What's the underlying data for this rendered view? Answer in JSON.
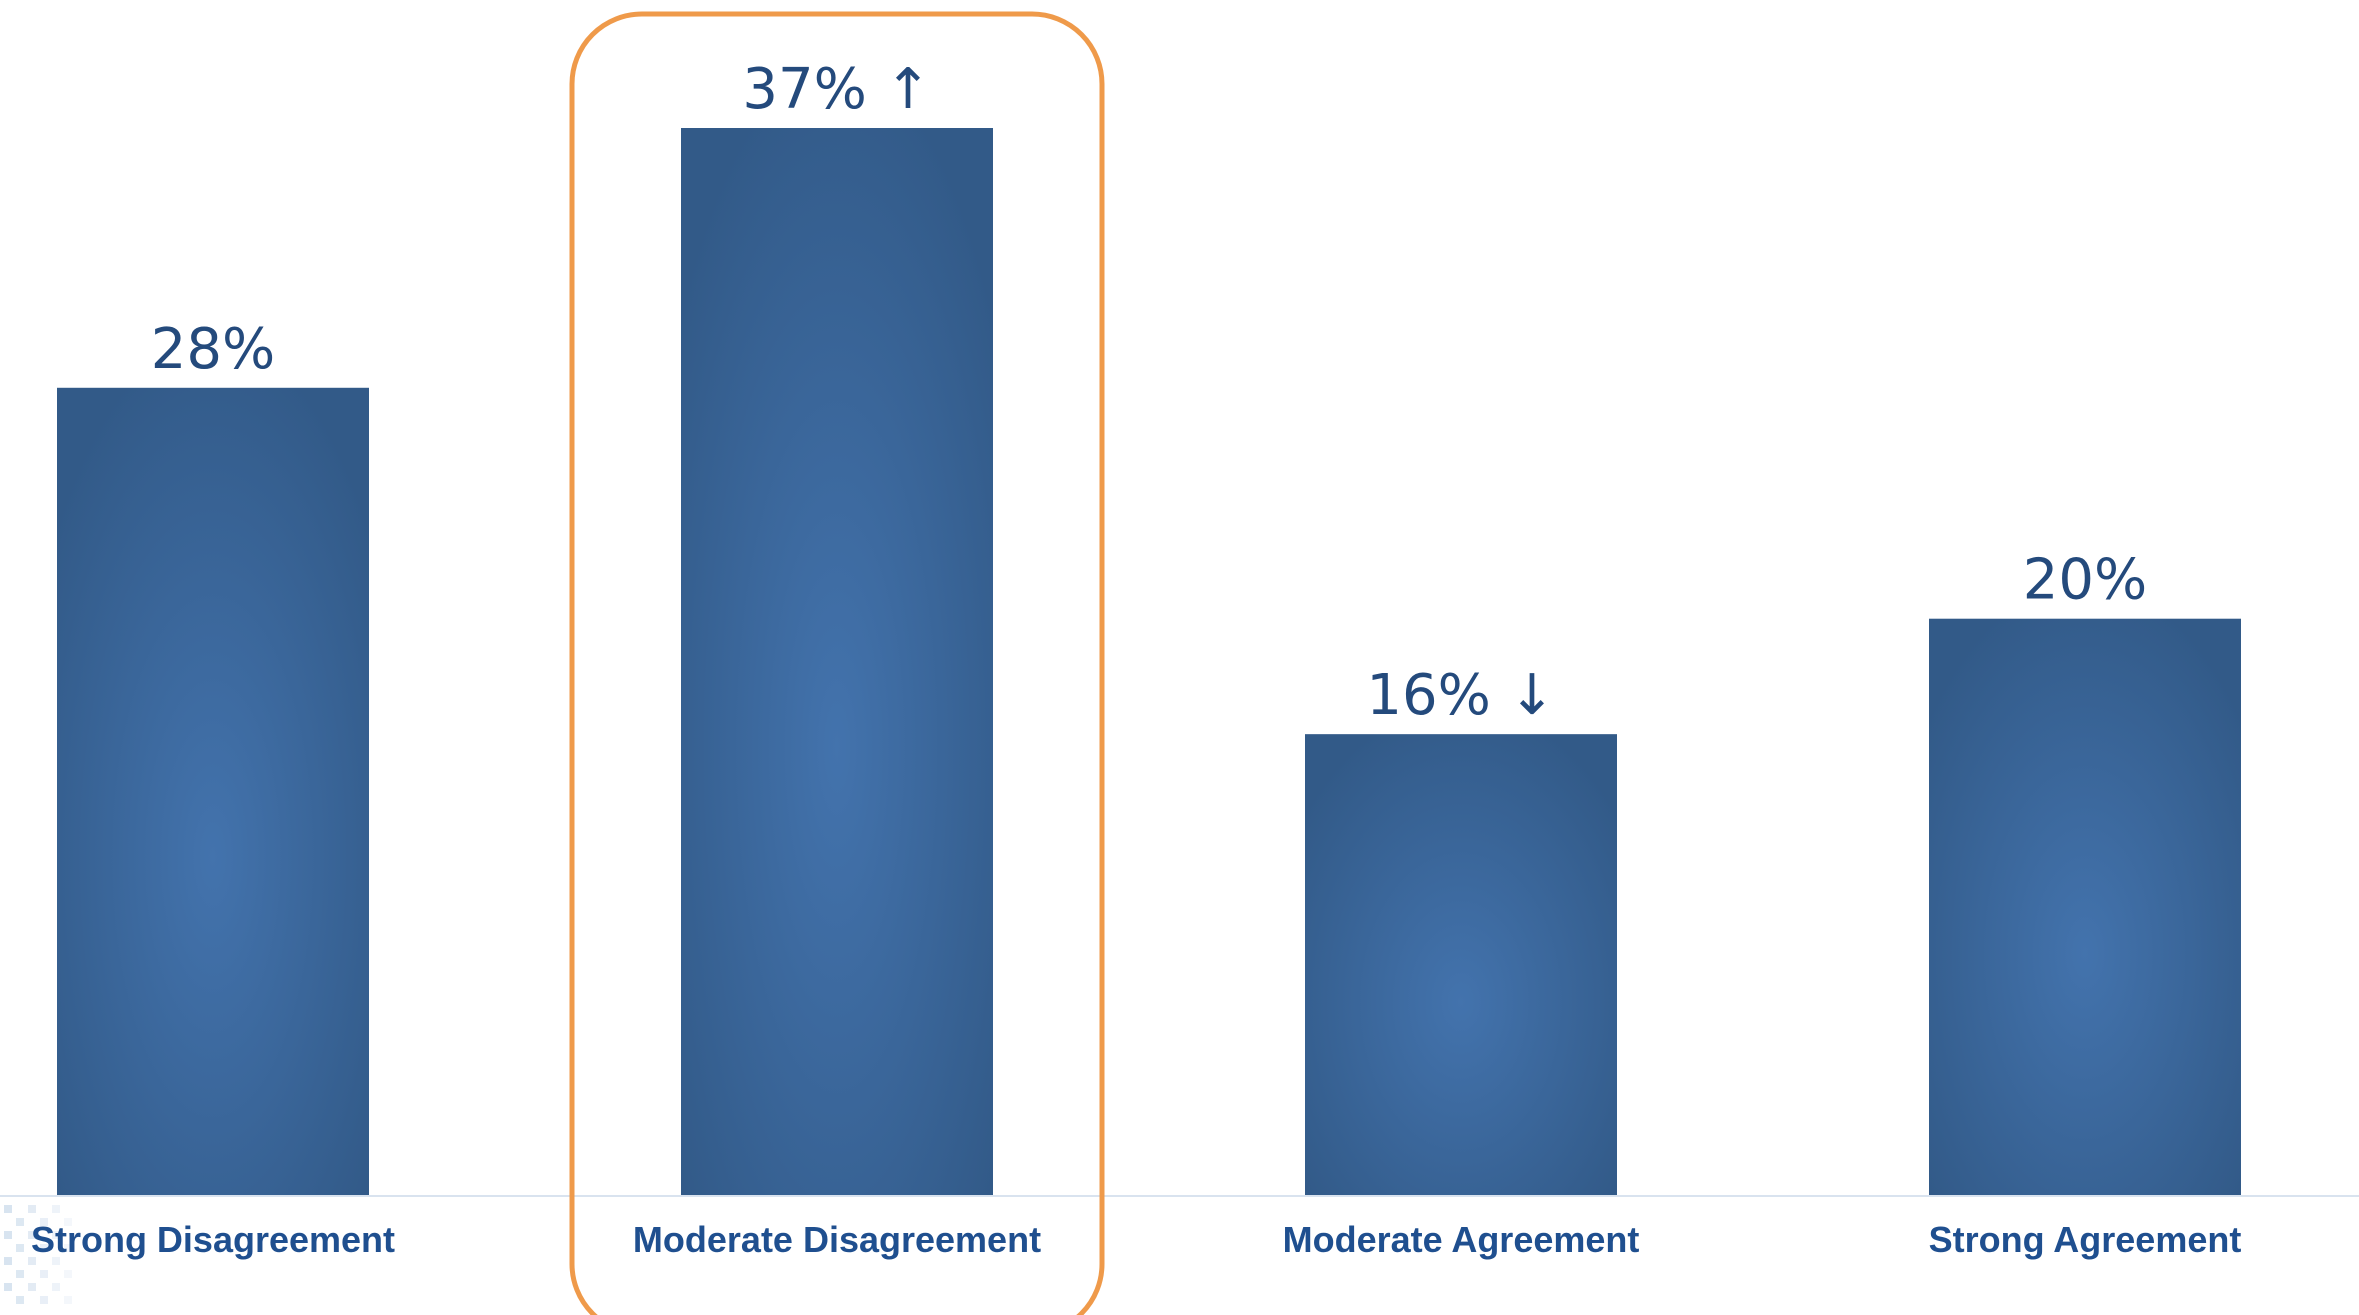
{
  "chart_data": {
    "type": "bar",
    "categories": [
      "Strong Disagreement",
      "Moderate Disagreement",
      "Moderate Agreement",
      "Strong Agreement"
    ],
    "values": [
      28,
      37,
      16,
      20
    ],
    "data_labels": [
      "28%",
      "37% ↑",
      "16% ↓",
      "20%"
    ],
    "title": "",
    "xlabel": "",
    "ylabel": "",
    "ylim": [
      0,
      37
    ],
    "grid": false,
    "legend": "none",
    "highlighted_category": "Moderate Disagreement"
  },
  "colors": {
    "bar_center": "#4373ad",
    "bar_edge": "#325a88",
    "label_text": "#244a7c",
    "category_text": "#1f4f8f",
    "highlight": "#ef9a4a",
    "axis_line": "#d9e3ef",
    "corner_pattern": "#c7d8ea"
  }
}
